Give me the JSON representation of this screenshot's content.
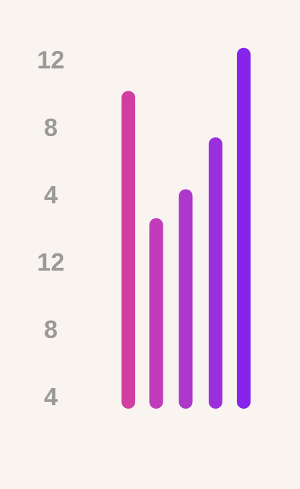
{
  "chart_data": {
    "type": "bar",
    "values": [
      5.55,
      3.66,
      4.09,
      4.86,
      6.19
    ],
    "colors": [
      "#d03ea2",
      "#c13cb8",
      "#ad38cc",
      "#9a2fdd",
      "#8624ec"
    ],
    "ylim": [
      0.83,
      6.4
    ],
    "yticks": [
      {
        "value": 1,
        "label": "4"
      },
      {
        "value": 2,
        "label": "8"
      },
      {
        "value": 3,
        "label": "12"
      },
      {
        "value": 4,
        "label": "4"
      },
      {
        "value": 5,
        "label": "8"
      },
      {
        "value": 6,
        "label": "12"
      }
    ]
  }
}
